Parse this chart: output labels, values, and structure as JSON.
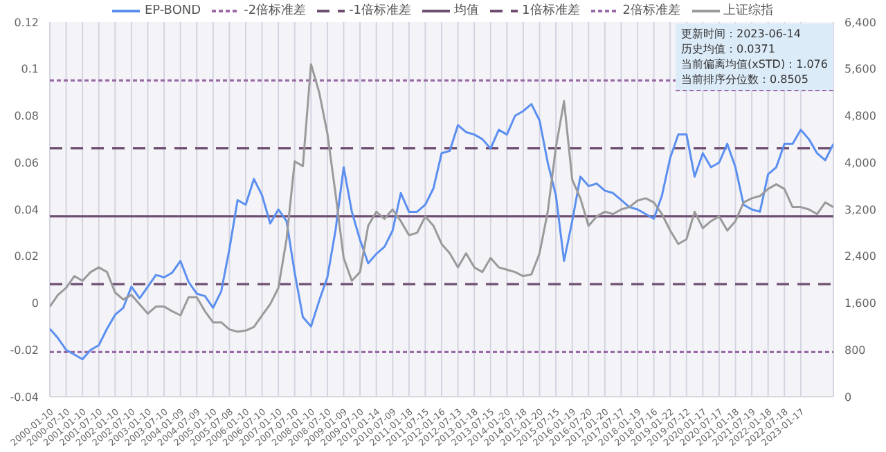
{
  "chart_data": {
    "type": "line",
    "categories": [
      "2000-01-10",
      null,
      "2000-07-10",
      null,
      "2001-01-10",
      null,
      "2001-07-10",
      null,
      "2002-01-10",
      null,
      "2002-07-10",
      null,
      "2003-01-10",
      null,
      "2003-07-10",
      null,
      "2004-01-09",
      null,
      "2004-07-09",
      null,
      "2005-01-10",
      null,
      "2005-07-08",
      null,
      "2006-01-10",
      null,
      "2006-07-10",
      null,
      "2007-01-10",
      null,
      "2007-07-10",
      null,
      "2008-01-10",
      null,
      "2008-07-10",
      null,
      "2009-01-09",
      null,
      "2009-07-10",
      null,
      "2010-01-14",
      null,
      "2010-07-09",
      null,
      "2011-01-18",
      null,
      "2011-07-15",
      null,
      "2012-01-16",
      null,
      "2012-07-13",
      null,
      "2013-01-18",
      null,
      "2013-07-15",
      null,
      "2014-01-20",
      null,
      "2014-07-18",
      null,
      "2015-01-20",
      null,
      "2015-07-15",
      null,
      "2016-01-19",
      null,
      "2016-07-20",
      null,
      "2017-01-20",
      null,
      "2017-07-17",
      null,
      "2018-01-19",
      null,
      "2018-07-16",
      null,
      "2019-01-22",
      null,
      "2019-07-12",
      null,
      "2020-01-17",
      null,
      "2020-07-17",
      null,
      "2021-01-18",
      null,
      "2021-07-19",
      null,
      "2022-01-18",
      null,
      "2022-07-18",
      null,
      "2023-01-17",
      null,
      null,
      null,
      null
    ],
    "series": [
      {
        "name": "EP-BOND",
        "color": "#5b8ff0",
        "values": [
          -0.011,
          -0.015,
          -0.02,
          -0.022,
          -0.024,
          -0.02,
          -0.018,
          -0.011,
          -0.005,
          -0.002,
          0.007,
          0.002,
          0.007,
          0.012,
          0.011,
          0.013,
          0.018,
          0.009,
          0.004,
          0.003,
          -0.002,
          0.005,
          0.023,
          0.044,
          0.042,
          0.053,
          0.046,
          0.034,
          0.04,
          0.035,
          0.013,
          -0.006,
          -0.01,
          0.001,
          0.011,
          0.031,
          0.058,
          0.039,
          0.027,
          0.017,
          0.021,
          0.024,
          0.031,
          0.047,
          0.039,
          0.039,
          0.042,
          0.049,
          0.064,
          0.065,
          0.076,
          0.073,
          0.072,
          0.07,
          0.066,
          0.074,
          0.072,
          0.08,
          0.082,
          0.085,
          0.078,
          0.06,
          0.046,
          0.018,
          0.035,
          0.054,
          0.05,
          0.051,
          0.048,
          0.047,
          0.044,
          0.041,
          0.04,
          0.038,
          0.036,
          0.046,
          0.062,
          0.072,
          0.072,
          0.054,
          0.064,
          0.058,
          0.06,
          0.068,
          0.058,
          0.042,
          0.04,
          0.039,
          0.055,
          0.058,
          0.068,
          0.068,
          0.074,
          0.07,
          0.064,
          0.061,
          0.068
        ]
      },
      {
        "name": "上证综指",
        "color": "#9a9a9a",
        "axis": "y2",
        "values": [
          1540,
          1740,
          1860,
          2060,
          1980,
          2130,
          2210,
          2130,
          1780,
          1660,
          1740,
          1580,
          1420,
          1540,
          1540,
          1460,
          1390,
          1700,
          1700,
          1460,
          1270,
          1270,
          1150,
          1110,
          1130,
          1190,
          1390,
          1580,
          1860,
          2690,
          4020,
          3940,
          5680,
          5200,
          4500,
          3470,
          2370,
          1980,
          2130,
          2920,
          3160,
          3040,
          3200,
          3000,
          2760,
          2800,
          3080,
          2920,
          2610,
          2450,
          2210,
          2450,
          2210,
          2130,
          2370,
          2210,
          2170,
          2130,
          2060,
          2090,
          2450,
          3160,
          4260,
          5050,
          3710,
          3390,
          2920,
          3080,
          3160,
          3120,
          3200,
          3240,
          3350,
          3390,
          3320,
          3120,
          2840,
          2610,
          2690,
          3160,
          2880,
          3000,
          3080,
          2840,
          3000,
          3320,
          3390,
          3430,
          3550,
          3630,
          3550,
          3240,
          3240,
          3200,
          3120,
          3320,
          3240
        ]
      }
    ],
    "ylim": [
      -0.04,
      0.12
    ],
    "yticks": [
      -0.04,
      -0.02,
      0,
      0.02,
      0.04,
      0.06,
      0.08,
      0.1,
      0.12
    ],
    "y2lim": [
      0,
      6400
    ],
    "y2ticks": [
      0,
      800,
      {
        "value": 1600,
        "label": "1,600"
      },
      {
        "value": 2400,
        "label": "2,400"
      },
      {
        "value": 3200,
        "label": "3,200"
      },
      {
        "value": 4000,
        "label": "4,000"
      },
      {
        "value": 4800,
        "label": "4,800"
      },
      {
        "value": 5600,
        "label": "5,600"
      },
      {
        "value": 6400,
        "label": "6,400"
      }
    ],
    "ref_lines": [
      {
        "axis": "y",
        "value": -0.0209,
        "label": "-2倍标准差",
        "color": "#9a6aa6",
        "line_style": "dotted"
      },
      {
        "axis": "y",
        "value": 0.0081,
        "label": "-1倍标准差",
        "color": "#6e4e70",
        "line_style": "dashed"
      },
      {
        "axis": "y",
        "value": 0.0371,
        "label": "均值",
        "color": "#6e4e70",
        "line_style": "solid"
      },
      {
        "axis": "y",
        "value": 0.0661,
        "label": "1倍标准差",
        "color": "#6e4e70",
        "line_style": "dashed"
      },
      {
        "axis": "y",
        "value": 0.0951,
        "label": "2倍标准差",
        "color": "#9a6aa6",
        "line_style": "dotted"
      }
    ],
    "annotations": [
      "更新时间：2023-06-14",
      "历史均值：0.0371",
      "当前偏离均值(xSTD)：1.076",
      "当前排序分位数：0.8505"
    ],
    "grid": "x",
    "legend": "top"
  }
}
